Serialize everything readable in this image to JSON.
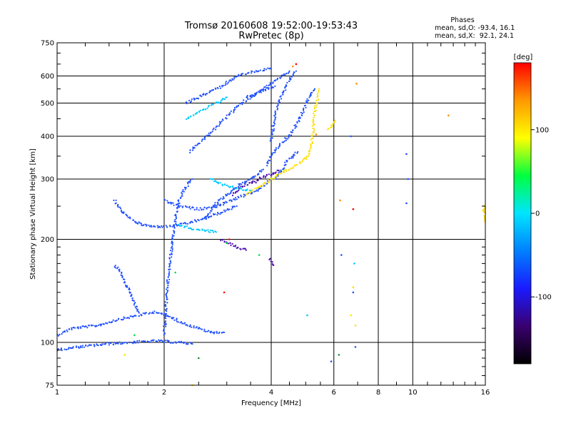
{
  "chart_data": {
    "type": "scatter",
    "title": "Tromsø 20160608 19:52:00-19:53:43",
    "subtitle": "RwPretec (8p)",
    "xlabel": "Frequency [MHz]",
    "ylabel": "Stationary phase Virtual Height [km]",
    "x_scale": "log",
    "y_scale": "log",
    "xlim": [
      1,
      16
    ],
    "ylim": [
      75,
      750
    ],
    "x_ticks": [
      1,
      2,
      4,
      6,
      8,
      10,
      16
    ],
    "y_ticks": [
      75,
      100,
      200,
      300,
      400,
      500,
      600,
      750
    ],
    "grid": true,
    "phase_stats": {
      "title": "Phases",
      "o_line": "mean, sd,O: -93.4, 16.1",
      "x_line": "mean, sd,X:  92.1, 24.1"
    },
    "colorbar": {
      "label": "[deg]",
      "range": [
        -180,
        180
      ],
      "ticks": [
        100,
        0,
        -100
      ],
      "colors": [
        "#000000",
        "#3a0070",
        "#1a1aff",
        "#0080ff",
        "#00e5ff",
        "#00ff40",
        "#ffff00",
        "#ff9900",
        "#ff0000"
      ]
    },
    "series": [
      {
        "color": "#1f4fff",
        "traces": [
          [
            [
              1.0,
              105
            ],
            [
              1.1,
              110
            ],
            [
              1.3,
              112
            ],
            [
              1.5,
              117
            ],
            [
              1.7,
              120
            ],
            [
              1.9,
              123
            ],
            [
              2.1,
              118
            ],
            [
              2.3,
              113
            ],
            [
              2.5,
              110
            ],
            [
              2.7,
              107
            ],
            [
              2.95,
              107
            ]
          ],
          [
            [
              1.0,
              95
            ],
            [
              1.15,
              97
            ],
            [
              1.4,
              99
            ],
            [
              1.6,
              100
            ],
            [
              1.9,
              101
            ],
            [
              2.2,
              100
            ],
            [
              2.4,
              99
            ]
          ],
          [
            [
              1.45,
              168
            ],
            [
              1.5,
              162
            ],
            [
              1.55,
              150
            ],
            [
              1.6,
              140
            ],
            [
              1.65,
              130
            ],
            [
              1.7,
              122
            ]
          ],
          [
            [
              1.45,
              260
            ],
            [
              1.5,
              245
            ],
            [
              1.58,
              232
            ],
            [
              1.7,
              222
            ],
            [
              1.85,
              218
            ],
            [
              2.05,
              218
            ],
            [
              2.3,
              222
            ],
            [
              2.6,
              230
            ],
            [
              2.9,
              240
            ],
            [
              3.2,
              250
            ]
          ],
          [
            [
              2.0,
              105
            ],
            [
              2.02,
              125
            ],
            [
              2.05,
              150
            ],
            [
              2.08,
              175
            ],
            [
              2.12,
              200
            ],
            [
              2.15,
              230
            ],
            [
              2.2,
              260
            ],
            [
              2.28,
              280
            ],
            [
              2.4,
              300
            ]
          ],
          [
            [
              2.35,
              360
            ],
            [
              2.5,
              380
            ],
            [
              2.7,
              410
            ],
            [
              2.9,
              440
            ],
            [
              3.1,
              470
            ],
            [
              3.3,
              500
            ],
            [
              3.6,
              530
            ],
            [
              3.9,
              560
            ],
            [
              4.2,
              590
            ],
            [
              4.5,
              620
            ]
          ],
          [
            [
              2.6,
              230
            ],
            [
              2.8,
              255
            ],
            [
              3.0,
              270
            ],
            [
              3.2,
              285
            ],
            [
              3.4,
              295
            ],
            [
              3.6,
              305
            ],
            [
              3.8,
              320
            ]
          ],
          [
            [
              2.0,
              260
            ],
            [
              2.2,
              250
            ],
            [
              2.5,
              245
            ],
            [
              2.8,
              250
            ],
            [
              3.1,
              260
            ],
            [
              3.4,
              270
            ],
            [
              3.7,
              280
            ],
            [
              4.0,
              300
            ]
          ],
          [
            [
              2.3,
              500
            ],
            [
              2.5,
              520
            ],
            [
              2.7,
              540
            ],
            [
              2.9,
              560
            ],
            [
              3.2,
              600
            ],
            [
              3.6,
              620
            ],
            [
              4.0,
              630
            ]
          ],
          [
            [
              3.4,
              520
            ],
            [
              3.6,
              530
            ],
            [
              3.8,
              545
            ],
            [
              4.1,
              560
            ]
          ],
          [
            [
              4.0,
              390
            ],
            [
              4.05,
              420
            ],
            [
              4.1,
              460
            ],
            [
              4.2,
              500
            ],
            [
              4.3,
              530
            ],
            [
              4.4,
              560
            ],
            [
              4.55,
              600
            ],
            [
              4.7,
              620
            ]
          ],
          [
            [
              3.9,
              330
            ],
            [
              4.0,
              350
            ],
            [
              4.15,
              370
            ],
            [
              4.3,
              385
            ],
            [
              4.5,
              400
            ],
            [
              4.7,
              430
            ],
            [
              4.9,
              470
            ],
            [
              5.1,
              520
            ],
            [
              5.3,
              550
            ]
          ],
          [
            [
              4.1,
              300
            ],
            [
              4.3,
              320
            ],
            [
              4.45,
              340
            ],
            [
              4.6,
              350
            ],
            [
              4.75,
              360
            ]
          ],
          [
            [
              6.3,
              180
            ],
            [
              6.8,
              140
            ],
            [
              6.9,
              97
            ],
            [
              6.7,
              400
            ],
            [
              9.6,
              355
            ],
            [
              9.7,
              300
            ],
            [
              9.6,
              255
            ],
            [
              5.9,
              88
            ]
          ]
        ]
      },
      {
        "color": "#4a0ab0",
        "traces": [
          [
            [
              3.1,
              270
            ],
            [
              3.3,
              285
            ],
            [
              3.6,
              295
            ],
            [
              3.8,
              305
            ],
            [
              4.0,
              310
            ],
            [
              4.2,
              318
            ]
          ],
          [
            [
              2.9,
              200
            ],
            [
              3.05,
              195
            ],
            [
              3.2,
              190
            ],
            [
              3.4,
              186
            ]
          ],
          [
            [
              3.95,
              175
            ],
            [
              4.05,
              168
            ]
          ]
        ]
      },
      {
        "color": "#00c8ff",
        "traces": [
          [
            [
              2.3,
              450
            ],
            [
              2.45,
              465
            ],
            [
              2.6,
              480
            ],
            [
              2.8,
              500
            ],
            [
              3.0,
              520
            ]
          ],
          [
            [
              2.7,
              300
            ],
            [
              2.9,
              290
            ],
            [
              3.1,
              285
            ],
            [
              3.3,
              280
            ],
            [
              3.5,
              278
            ]
          ],
          [
            [
              2.2,
              220
            ],
            [
              2.4,
              215
            ],
            [
              2.6,
              212
            ],
            [
              2.8,
              210
            ]
          ],
          [
            [
              5.05,
              120
            ],
            [
              6.85,
              170
            ]
          ]
        ]
      },
      {
        "color": "#ffe000",
        "traces": [
          [
            [
              3.4,
              270
            ],
            [
              3.6,
              280
            ],
            [
              3.8,
              290
            ],
            [
              4.0,
              300
            ],
            [
              4.2,
              310
            ],
            [
              4.4,
              318
            ],
            [
              4.6,
              325
            ],
            [
              4.8,
              335
            ],
            [
              5.0,
              345
            ],
            [
              5.1,
              355
            ],
            [
              5.2,
              380
            ],
            [
              5.25,
              420
            ],
            [
              5.3,
              470
            ],
            [
              5.4,
              520
            ],
            [
              5.45,
              550
            ]
          ],
          [
            [
              5.8,
              420
            ],
            [
              5.95,
              430
            ],
            [
              6.05,
              445
            ]
          ],
          [
            [
              15.8,
              240
            ],
            [
              15.9,
              250
            ],
            [
              15.95,
              225
            ]
          ],
          [
            [
              1.55,
              92
            ],
            [
              2.4,
              75
            ],
            [
              6.9,
              112
            ],
            [
              6.8,
              145
            ],
            [
              6.7,
              120
            ]
          ]
        ]
      },
      {
        "color": "#ff8c00",
        "traces": [
          [
            [
              6.95,
              570
            ],
            [
              12.6,
              460
            ],
            [
              4.6,
              640
            ],
            [
              5.35,
              405
            ],
            [
              6.25,
              260
            ]
          ]
        ]
      },
      {
        "color": "#ff0000",
        "traces": [
          [
            [
              4.7,
              650
            ],
            [
              2.95,
              140
            ],
            [
              6.8,
              245
            ],
            [
              3.05,
              200
            ]
          ]
        ]
      },
      {
        "color": "#00e040",
        "traces": [
          [
            [
              1.65,
              105
            ],
            [
              2.15,
              160
            ],
            [
              3.0,
              195
            ],
            [
              3.7,
              180
            ]
          ]
        ]
      },
      {
        "color": "#1a8a3a",
        "traces": [
          [
            [
              2.5,
              90
            ],
            [
              6.2,
              92
            ]
          ]
        ]
      }
    ]
  }
}
